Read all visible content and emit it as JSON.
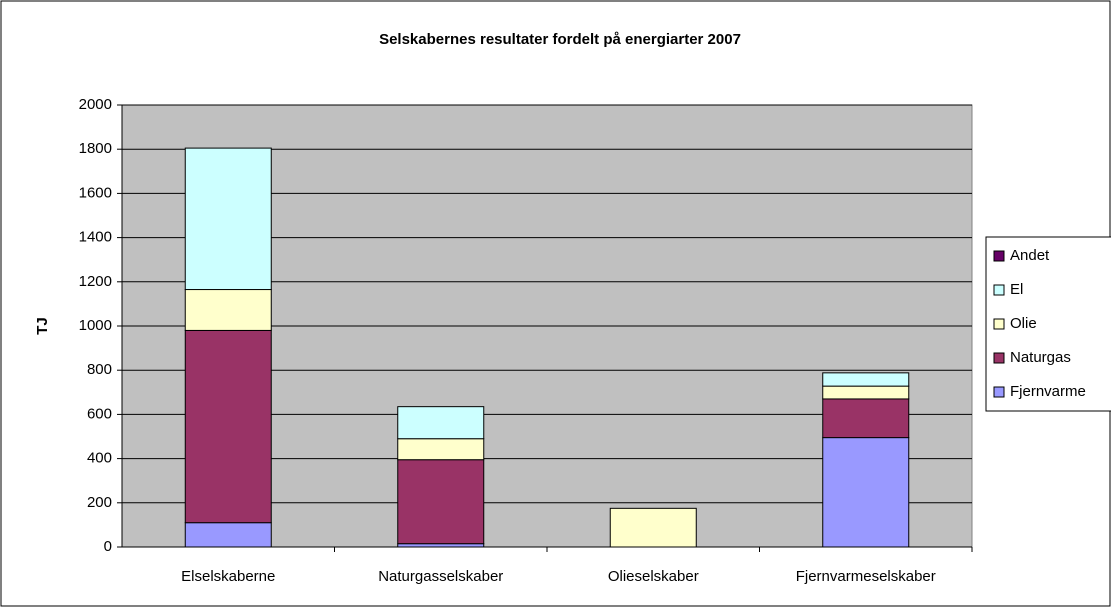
{
  "chart_data": {
    "type": "stacked_bar",
    "title": "Selskabernes resultater fordelt på energiarter 2007",
    "ylabel": "TJ",
    "categories": [
      "Elselskaberne",
      "Naturgasselskaber",
      "Olieselskaber",
      "Fjernvarmeselskaber"
    ],
    "series": [
      {
        "name": "Fjernvarme",
        "color": "#9999ff",
        "values": [
          110,
          15,
          0,
          495
        ]
      },
      {
        "name": "Naturgas",
        "color": "#993366",
        "values": [
          870,
          380,
          0,
          175
        ]
      },
      {
        "name": "Olie",
        "color": "#ffffcc",
        "values": [
          185,
          95,
          175,
          58
        ]
      },
      {
        "name": "El",
        "color": "#ccffff",
        "values": [
          640,
          145,
          0,
          60
        ]
      },
      {
        "name": "Andet",
        "color": "#660066",
        "values": [
          0,
          0,
          0,
          0
        ]
      }
    ],
    "ylim": [
      0,
      2000
    ],
    "yticks": [
      0,
      200,
      400,
      600,
      800,
      1000,
      1200,
      1400,
      1600,
      1800,
      2000
    ],
    "grid": true,
    "legend": "right"
  }
}
